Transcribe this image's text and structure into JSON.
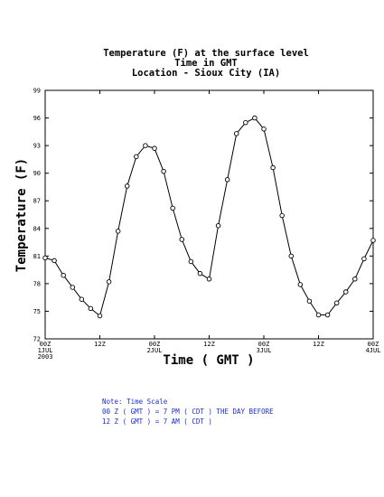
{
  "chart_data": {
    "type": "line",
    "title": [
      "Temperature (F) at the surface level",
      "Time in GMT",
      "Location - Sioux City (IA)"
    ],
    "xlabel": "Time ( GMT )",
    "ylabel": "Temperature (F)",
    "ylim": [
      72,
      99
    ],
    "yticks": [
      72,
      75,
      78,
      81,
      84,
      87,
      90,
      93,
      96,
      99
    ],
    "xlim": [
      0,
      72
    ],
    "xticks": [
      {
        "hour": 0,
        "lines": [
          "00Z",
          "1JUL",
          "2003"
        ]
      },
      {
        "hour": 12,
        "lines": [
          "12Z"
        ]
      },
      {
        "hour": 24,
        "lines": [
          "00Z",
          "2JUL"
        ]
      },
      {
        "hour": 36,
        "lines": [
          "12Z"
        ]
      },
      {
        "hour": 48,
        "lines": [
          "00Z",
          "3JUL"
        ]
      },
      {
        "hour": 60,
        "lines": [
          "12Z"
        ]
      },
      {
        "hour": 72,
        "lines": [
          "00Z",
          "4JUL"
        ]
      }
    ],
    "grid": false,
    "marker": "open-circle",
    "series": [
      {
        "x": [
          0,
          2,
          4,
          6,
          8,
          10,
          12,
          14,
          16,
          18,
          20,
          22,
          24,
          26,
          28,
          30,
          32,
          34,
          36,
          38,
          40,
          42,
          44,
          46,
          48,
          50,
          52,
          54,
          56,
          58,
          60,
          62,
          64,
          66,
          68,
          70,
          72
        ],
        "y": [
          80.8,
          80.5,
          78.9,
          77.6,
          76.3,
          75.3,
          74.5,
          78.2,
          83.7,
          88.6,
          91.8,
          93.0,
          92.7,
          90.2,
          86.2,
          82.8,
          80.4,
          79.1,
          78.5,
          84.3,
          89.3,
          94.3,
          95.5,
          96.0,
          94.8,
          90.6,
          85.4,
          81.0,
          77.9,
          76.1,
          74.6,
          74.6,
          75.9,
          77.1,
          78.5,
          80.7,
          82.7
        ]
      }
    ]
  },
  "note": {
    "line1": "Note: Time Scale",
    "line2": "00 Z ( GMT ) = 7 PM ( CDT ) THE DAY BEFORE",
    "line3": "12 Z ( GMT ) = 7 AM ( CDT )"
  }
}
